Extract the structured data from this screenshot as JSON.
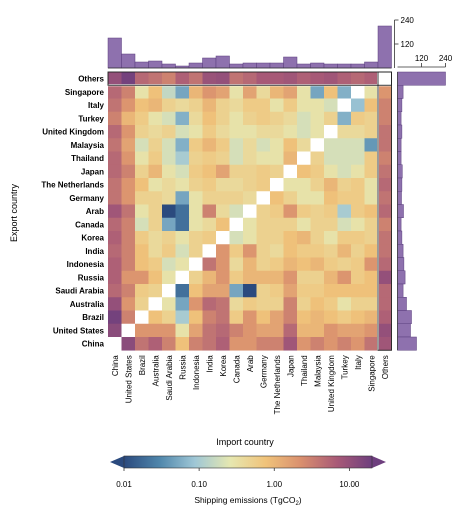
{
  "chart_data": {
    "type": "heatmap",
    "x_label": "Import country",
    "y_label": "Export country",
    "colorbar": {
      "label": "Shipping emissions (TgCO",
      "label_sub": "2",
      "label_end": ")",
      "scale": "log",
      "range": [
        0.01,
        20
      ],
      "ticks": [
        "0.01",
        "0.10",
        "1.00",
        "10.00"
      ],
      "tick_values": [
        0.01,
        0.1,
        1,
        10
      ],
      "colors": [
        "#2b4a7e",
        "#4f86ab",
        "#9fc7d6",
        "#e6e7b0",
        "#f0c37a",
        "#d98f6e",
        "#a95a77",
        "#6e3f7e"
      ]
    },
    "x_countries": [
      "China",
      "United States",
      "Brazil",
      "Australia",
      "Saudi Arabia",
      "Russia",
      "Indonesia",
      "India",
      "Korea",
      "Canada",
      "Arab",
      "Germany",
      "The Netherlands",
      "Japan",
      "Thailand",
      "Malaysia",
      "United Kingdom",
      "Turkey",
      "Italy",
      "Singapore",
      "Others"
    ],
    "y_countries": [
      "Others",
      "Singapore",
      "Italy",
      "Turkey",
      "United Kingdom",
      "Malaysia",
      "Thailand",
      "Japan",
      "The Netherlands",
      "Germany",
      "Arab",
      "Canada",
      "Korea",
      "India",
      "Indonesia",
      "Russia",
      "Saudi Arabia",
      "Australia",
      "Brazil",
      "United States",
      "China"
    ],
    "matrix": [
      [
        10,
        18,
        5,
        4,
        3,
        6,
        4,
        9,
        10,
        4,
        5,
        7,
        7,
        8,
        6,
        7,
        8,
        6,
        5,
        6,
        null
      ],
      [
        5,
        3,
        0.3,
        0.8,
        0.15,
        0.05,
        1,
        2,
        1.5,
        0.3,
        1.5,
        0.4,
        1,
        1.5,
        0.3,
        0.05,
        0.8,
        0.06,
        null,
        0.3,
        2
      ],
      [
        4,
        2,
        0.8,
        1,
        0.5,
        0.4,
        0.5,
        1,
        0.5,
        0.4,
        0.6,
        0.6,
        0.3,
        0.6,
        0.3,
        0.3,
        0.2,
        null,
        0.08,
        0.8,
        3
      ],
      [
        3,
        1,
        0.6,
        0.3,
        0.2,
        0.06,
        0.4,
        0.8,
        0.5,
        0.3,
        0.5,
        0.6,
        0.5,
        0.4,
        0.2,
        0.3,
        0.5,
        0.06,
        0.6,
        0.5,
        3
      ],
      [
        5,
        2,
        0.5,
        0.4,
        0.5,
        0.2,
        0.3,
        0.6,
        0.4,
        0.3,
        0.3,
        0.4,
        0.4,
        0.3,
        0.2,
        0.3,
        null,
        0.4,
        0.4,
        0.5,
        4
      ],
      [
        4,
        1.5,
        0.2,
        0.5,
        0.2,
        0.06,
        0.6,
        1,
        0.6,
        0.2,
        0.4,
        0.2,
        0.3,
        0.8,
        0.4,
        null,
        0.2,
        0.2,
        0.2,
        0.04,
        4
      ],
      [
        5,
        2,
        0.3,
        0.6,
        0.2,
        0.1,
        0.5,
        0.6,
        0.5,
        0.2,
        0.4,
        0.3,
        0.3,
        1,
        null,
        0.5,
        0.2,
        0.2,
        0.2,
        0.6,
        3
      ],
      [
        5,
        3,
        0.5,
        1,
        0.3,
        0.2,
        0.6,
        0.8,
        1.5,
        0.5,
        0.5,
        0.6,
        0.5,
        null,
        0.8,
        0.6,
        0.3,
        0.2,
        0.3,
        0.6,
        4
      ],
      [
        4,
        2,
        0.8,
        0.3,
        0.4,
        0.3,
        0.5,
        0.6,
        0.4,
        0.4,
        0.5,
        0.6,
        null,
        0.3,
        0.3,
        0.5,
        1,
        0.5,
        0.6,
        0.3,
        5
      ],
      [
        4,
        2,
        0.5,
        0.5,
        0.4,
        0.05,
        0.3,
        0.5,
        0.5,
        0.5,
        0.4,
        null,
        0.8,
        0.5,
        0.3,
        0.3,
        0.8,
        0.6,
        0.6,
        0.3,
        4
      ],
      [
        8,
        4,
        0.3,
        0.5,
        0.01,
        0.02,
        0.3,
        3,
        0.4,
        0.2,
        null,
        0.5,
        0.6,
        2,
        0.6,
        0.5,
        0.6,
        0.1,
        0.6,
        0.8,
        5
      ],
      [
        5,
        3,
        0.2,
        0.5,
        0.05,
        0.02,
        0.3,
        0.4,
        0.8,
        null,
        0.3,
        0.5,
        0.5,
        0.5,
        0.3,
        0.5,
        0.5,
        0.2,
        0.3,
        0.5,
        3
      ],
      [
        6,
        3,
        0.6,
        0.4,
        0.5,
        0.3,
        0.5,
        0.6,
        null,
        0.2,
        0.3,
        0.5,
        0.5,
        0.8,
        1,
        0.5,
        0.3,
        0.6,
        0.6,
        0.5,
        4
      ],
      [
        5,
        3,
        0.8,
        0.4,
        0.6,
        0.2,
        0.5,
        null,
        2,
        0.6,
        2,
        0.5,
        0.4,
        0.8,
        0.6,
        0.6,
        0.5,
        1,
        0.5,
        0.8,
        4
      ],
      [
        6,
        3,
        0.8,
        0.6,
        0.2,
        0.3,
        null,
        4,
        2,
        0.4,
        1,
        0.5,
        0.6,
        1,
        0.8,
        1,
        0.6,
        0.5,
        0.6,
        2,
        5
      ],
      [
        6,
        2,
        2,
        0.8,
        0.3,
        null,
        0.5,
        1,
        2,
        0.6,
        1,
        1,
        1,
        2,
        0.5,
        0.5,
        1,
        2,
        0.6,
        0.8,
        10
      ],
      [
        5,
        3,
        0.6,
        0.5,
        null,
        0.02,
        0.8,
        1.5,
        1.5,
        0.05,
        0.01,
        0.5,
        0.6,
        1.5,
        0.6,
        0.6,
        0.8,
        0.8,
        0.8,
        0.8,
        5
      ],
      [
        10,
        2,
        0.5,
        null,
        0.3,
        0.05,
        2,
        5,
        4,
        0.4,
        0.6,
        0.5,
        0.5,
        3,
        0.5,
        0.8,
        0.6,
        0.3,
        0.5,
        0.5,
        5
      ],
      [
        18,
        3,
        null,
        0.8,
        0.5,
        0.1,
        0.8,
        3,
        4,
        0.6,
        2,
        0.8,
        1.5,
        3,
        0.8,
        1,
        0.8,
        0.6,
        0.8,
        1,
        6
      ],
      [
        12,
        null,
        2,
        2,
        2,
        0.3,
        1.5,
        4,
        5,
        3,
        2,
        1.5,
        1.5,
        5,
        1,
        1,
        2,
        1.5,
        1.5,
        2,
        10
      ],
      [
        null,
        12,
        4,
        6,
        3,
        0.8,
        3,
        4,
        6,
        2,
        2,
        3,
        3,
        8,
        2,
        3,
        2,
        3,
        2,
        4,
        8
      ]
    ],
    "import_totals": [
      150,
      70,
      30,
      35,
      20,
      10,
      25,
      50,
      60,
      20,
      25,
      25,
      25,
      55,
      20,
      25,
      20,
      20,
      20,
      30,
      210
    ],
    "export_totals": [
      240,
      28,
      22,
      18,
      22,
      18,
      18,
      24,
      22,
      20,
      30,
      18,
      22,
      28,
      32,
      38,
      28,
      45,
      70,
      65,
      95
    ],
    "top_axis": {
      "ticks": [
        "120",
        "240"
      ],
      "max": 240
    },
    "right_axis": {
      "ticks": [
        "120",
        "240"
      ],
      "max": 240
    }
  }
}
